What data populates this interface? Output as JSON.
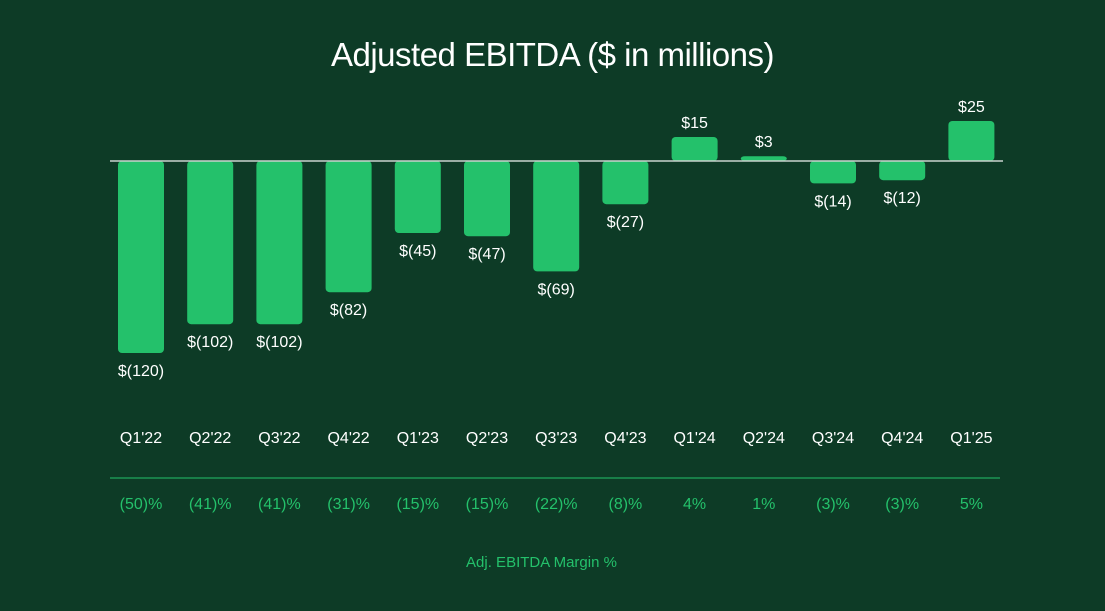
{
  "chart_data": {
    "type": "bar",
    "title": "Adjusted EBITDA ($ in millions)",
    "categories": [
      "Q1'22",
      "Q2'22",
      "Q3'22",
      "Q4'22",
      "Q1'23",
      "Q2'23",
      "Q3'23",
      "Q4'23",
      "Q1'24",
      "Q2'24",
      "Q3'24",
      "Q4'24",
      "Q1'25"
    ],
    "values": [
      -120,
      -102,
      -102,
      -82,
      -45,
      -47,
      -69,
      -27,
      15,
      3,
      -14,
      -12,
      25
    ],
    "value_labels": [
      "$(120)",
      "$(102)",
      "$(102)",
      "$(82)",
      "$(45)",
      "$(47)",
      "$(69)",
      "$(27)",
      "$15",
      "$3",
      "$(14)",
      "$(12)",
      "$25"
    ],
    "margins": [
      "(50)%",
      "(41)%",
      "(41)%",
      "(31)%",
      "(15)%",
      "(15)%",
      "(22)%",
      "(8)%",
      "4%",
      "1%",
      "(3)%",
      "(3)%",
      "5%"
    ],
    "margin_label": "Adj. EBITDA Margin %",
    "ylim": [
      -120,
      25
    ],
    "xlabel": "",
    "ylabel": ""
  },
  "colors": {
    "background": "#0d3b26",
    "bar": "#24c16b",
    "text": "#ffffff",
    "margin_text": "#24c16b",
    "baseline": "#c9d3cd"
  }
}
